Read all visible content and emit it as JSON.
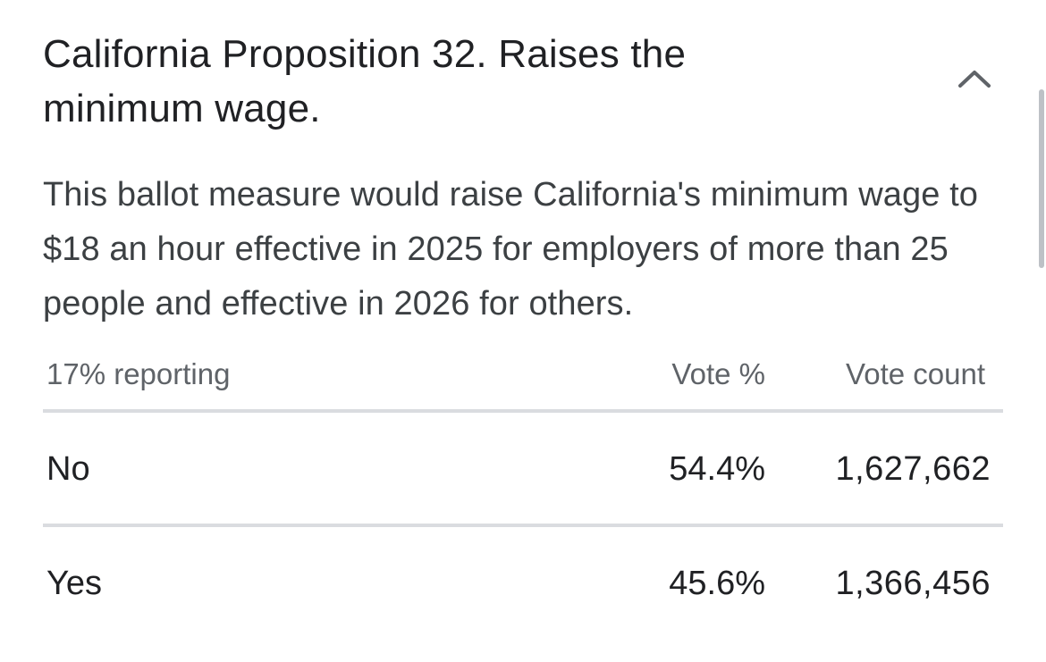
{
  "measure": {
    "title": "California Proposition 32. Raises the minimum wage.",
    "collapse_icon": "chevron-up-icon",
    "description": "This ballot measure would raise California's minimum wage to $18 an hour effective in 2025 for employers of more than 25 people and effective in 2026 for others."
  },
  "results": {
    "reporting": "17% reporting",
    "col_pct": "Vote %",
    "col_count": "Vote count",
    "rows": [
      {
        "label": "No",
        "pct": "54.4%",
        "count": "1,627,662"
      },
      {
        "label": "Yes",
        "pct": "45.6%",
        "count": "1,366,456"
      }
    ]
  },
  "colors": {
    "text_primary": "#202124",
    "text_secondary": "#5f6368",
    "divider": "#dadce0"
  }
}
